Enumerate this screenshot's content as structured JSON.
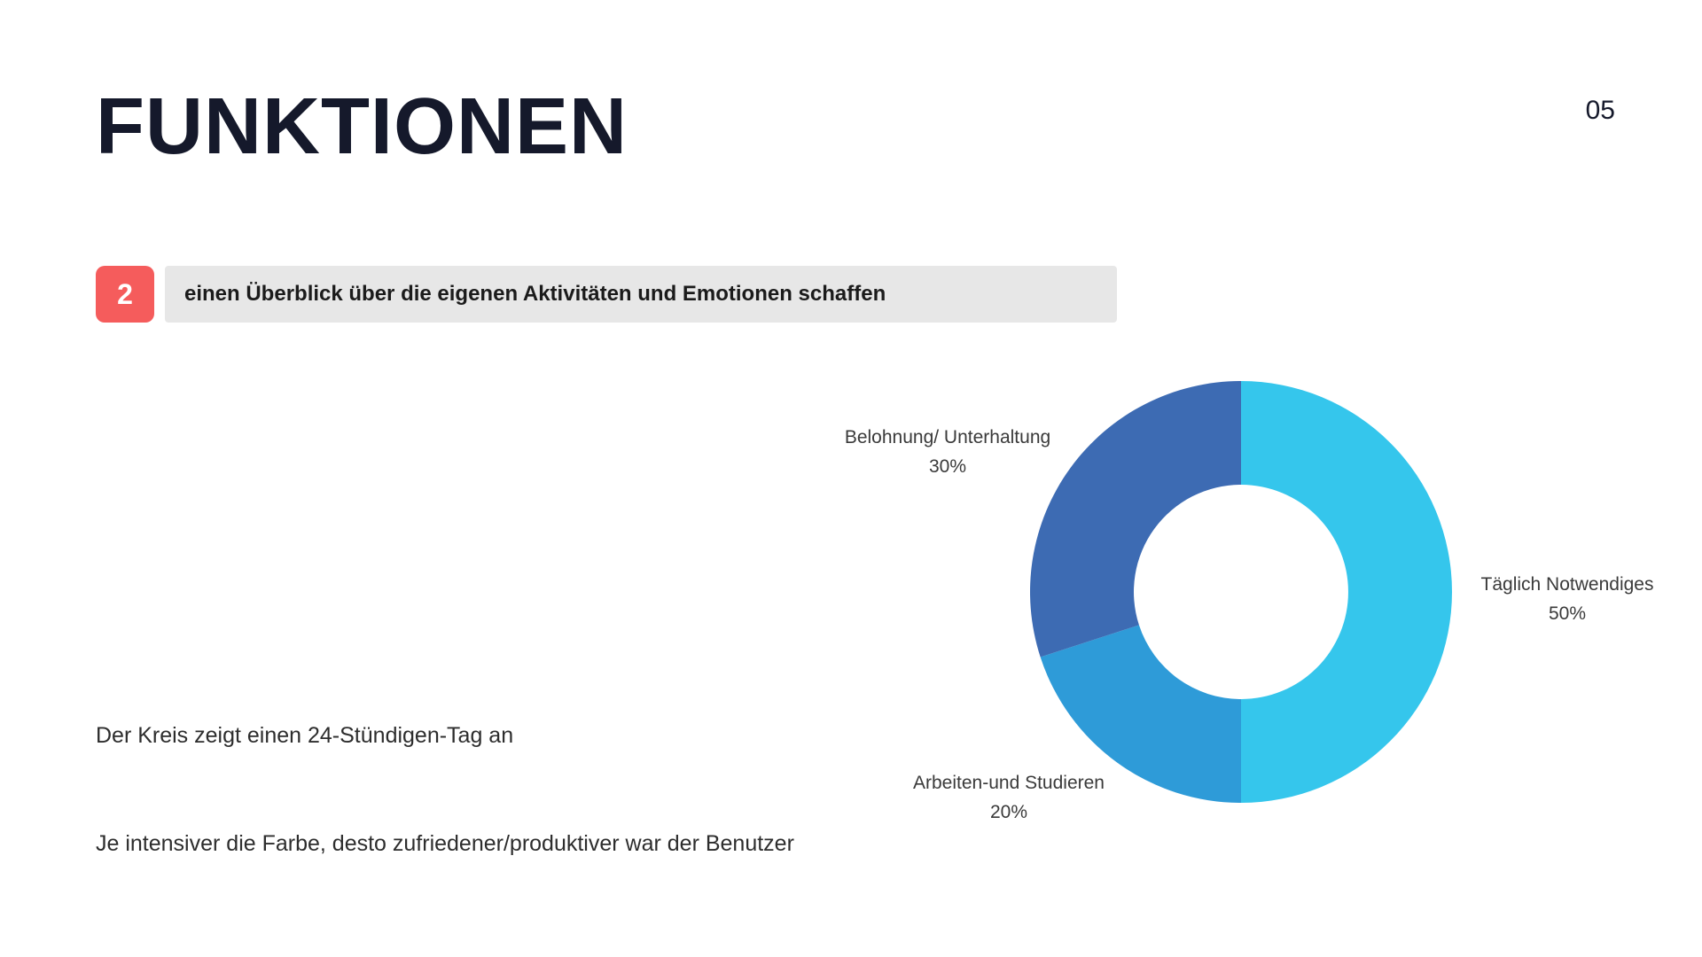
{
  "slide": {
    "title": "FUNKTIONEN",
    "page_number": "05",
    "badge": {
      "number": "2",
      "text": "einen Überblick über die eigenen Aktivitäten und Emotionen schaffen"
    },
    "notes": [
      "Der Kreis zeigt einen 24-Stündigen-Tag an",
      "Je intensiver die Farbe, desto zufriedener/produktiver war der Benutzer"
    ],
    "colors": {
      "title_text": "#15192B",
      "badge_red": "#F55C5C",
      "headline_bar_bg": "#E7E7E7",
      "note_text": "#2d2d2d"
    }
  },
  "chart_data": {
    "type": "pie",
    "subtype": "donut",
    "title": "",
    "start_angle_deg": 0,
    "direction": "clockwise",
    "inner_radius_ratio": 0.51,
    "legend_position": "outside-labels",
    "segments": [
      {
        "label": "Täglich Notwendiges",
        "value": 50,
        "percent_label": "50%",
        "color": "#35C6EC"
      },
      {
        "label": "Arbeiten-und Studieren",
        "value": 20,
        "percent_label": "20%",
        "color": "#2E9BD8"
      },
      {
        "label": "Belohnung/ Unterhaltung",
        "value": 30,
        "percent_label": "30%",
        "color": "#3D6BB3"
      }
    ]
  }
}
